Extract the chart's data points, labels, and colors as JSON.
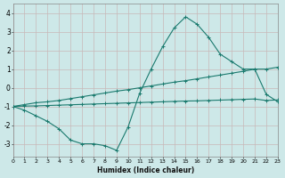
{
  "background_color": "#cde8e8",
  "grid_color": "#c8b8b8",
  "line_color": "#1a7a6e",
  "xlabel": "Humidex (Indice chaleur)",
  "xlim": [
    0,
    23
  ],
  "ylim": [
    -3.7,
    4.5
  ],
  "yticks": [
    -3,
    -2,
    -1,
    0,
    1,
    2,
    3,
    4
  ],
  "xticks": [
    0,
    1,
    2,
    3,
    4,
    5,
    6,
    7,
    8,
    9,
    10,
    11,
    12,
    13,
    14,
    15,
    16,
    17,
    18,
    19,
    20,
    21,
    22,
    23
  ],
  "series1_x": [
    0,
    1,
    2,
    3,
    4,
    5,
    6,
    7,
    8,
    9,
    10,
    11,
    12,
    13,
    14,
    15,
    16,
    17,
    18,
    19,
    20,
    21,
    22,
    23
  ],
  "series1_y": [
    -1.0,
    -1.2,
    -1.5,
    -1.8,
    -2.2,
    -2.8,
    -3.0,
    -3.0,
    -3.1,
    -3.35,
    -2.1,
    -0.3,
    1.0,
    2.2,
    3.2,
    3.8,
    3.4,
    2.7,
    1.8,
    1.4,
    1.0,
    1.0,
    -0.35,
    -0.75
  ],
  "series2_x": [
    0,
    1,
    2,
    3,
    4,
    5,
    6,
    7,
    8,
    9,
    10,
    11,
    12,
    13,
    14,
    15,
    16,
    17,
    18,
    19,
    20,
    21,
    22,
    23
  ],
  "series2_y": [
    -1.0,
    -0.9,
    -0.8,
    -0.75,
    -0.68,
    -0.58,
    -0.48,
    -0.38,
    -0.28,
    -0.18,
    -0.1,
    0.0,
    0.1,
    0.2,
    0.3,
    0.38,
    0.48,
    0.58,
    0.68,
    0.78,
    0.88,
    1.0,
    1.0,
    1.1
  ],
  "series3_x": [
    0,
    1,
    2,
    3,
    4,
    5,
    6,
    7,
    8,
    9,
    10,
    11,
    12,
    13,
    14,
    15,
    16,
    17,
    18,
    19,
    20,
    21,
    22,
    23
  ],
  "series3_y": [
    -1.0,
    -0.98,
    -0.97,
    -0.95,
    -0.93,
    -0.91,
    -0.89,
    -0.87,
    -0.85,
    -0.83,
    -0.81,
    -0.79,
    -0.77,
    -0.75,
    -0.73,
    -0.71,
    -0.7,
    -0.68,
    -0.66,
    -0.64,
    -0.62,
    -0.6,
    -0.68,
    -0.65
  ]
}
